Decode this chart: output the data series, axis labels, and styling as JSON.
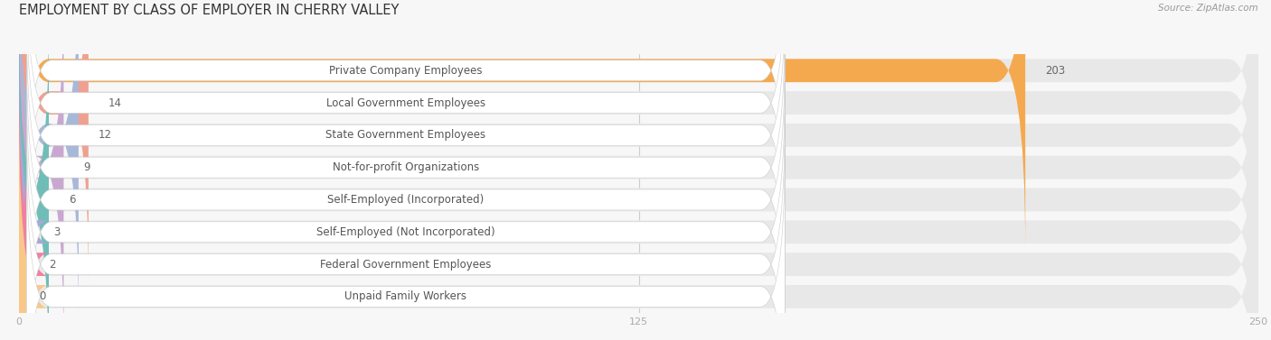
{
  "title": "EMPLOYMENT BY CLASS OF EMPLOYER IN CHERRY VALLEY",
  "source": "Source: ZipAtlas.com",
  "categories": [
    "Private Company Employees",
    "Local Government Employees",
    "State Government Employees",
    "Not-for-profit Organizations",
    "Self-Employed (Incorporated)",
    "Self-Employed (Not Incorporated)",
    "Federal Government Employees",
    "Unpaid Family Workers"
  ],
  "values": [
    203,
    14,
    12,
    9,
    6,
    3,
    2,
    0
  ],
  "bar_colors": [
    "#f5a94e",
    "#f0a090",
    "#a8b8d8",
    "#c8a8d0",
    "#70bdb8",
    "#a8a8d8",
    "#f080a0",
    "#f8c888"
  ],
  "row_bg_color": "#e8e8e8",
  "label_box_color": "#ffffff",
  "fig_bg_color": "#f7f7f7",
  "xlim": [
    0,
    250
  ],
  "xticks": [
    0,
    125,
    250
  ],
  "title_fontsize": 10.5,
  "label_fontsize": 8.5,
  "value_fontsize": 8.5,
  "source_fontsize": 7.5
}
